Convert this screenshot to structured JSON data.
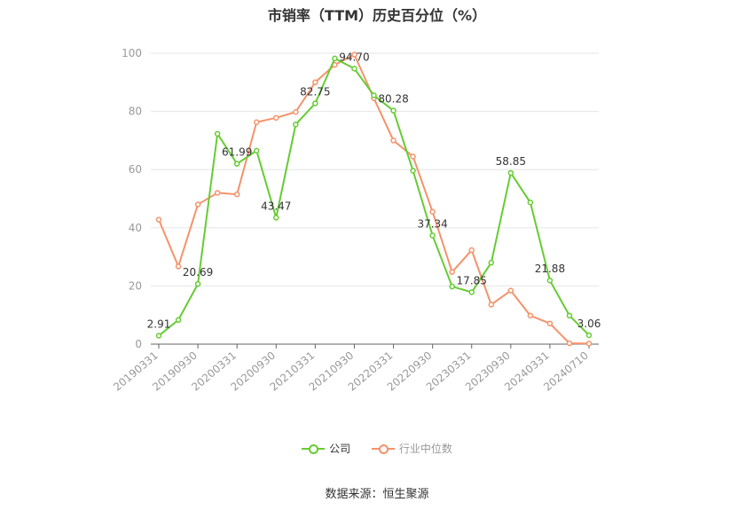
{
  "title": "市销率（TTM）历史百分位（%）",
  "source": "数据来源：恒生聚源",
  "legend": {
    "company": "公司",
    "industry": "行业中位数"
  },
  "colors": {
    "company": "#66cc33",
    "industry": "#f4936b",
    "axis": "#999999",
    "grid": "#e6e6e6"
  },
  "chart_data": {
    "type": "line",
    "title": "市销率（TTM）历史百分位（%）",
    "ylim": [
      0,
      100
    ],
    "yticks": [
      0,
      20,
      40,
      60,
      80,
      100
    ],
    "xtick_labels": [
      "20190331",
      "20190930",
      "20200331",
      "20200930",
      "20210331",
      "20210930",
      "20220331",
      "20220930",
      "20230331",
      "20230930",
      "20240331",
      "20240710"
    ],
    "x": [
      "20190331",
      "20190630",
      "20190930",
      "20191231",
      "20200331",
      "20200630",
      "20200930",
      "20201231",
      "20210331",
      "20210630",
      "20210930",
      "20211231",
      "20220331",
      "20220630",
      "20220930",
      "20221231",
      "20230331",
      "20230630",
      "20230930",
      "20231231",
      "20240331",
      "20240630",
      "20240710"
    ],
    "series": [
      {
        "name": "公司",
        "values": [
          2.91,
          8.3,
          20.69,
          72.3,
          61.99,
          66.5,
          43.47,
          75.5,
          82.75,
          98.2,
          94.7,
          85.5,
          80.28,
          59.6,
          37.34,
          19.8,
          17.85,
          28.0,
          58.85,
          48.7,
          21.88,
          9.8,
          3.06
        ],
        "labels": {
          "0": "2.91",
          "2": "20.69",
          "4": "61.99",
          "6": "43.47",
          "8": "82.75",
          "10": "94.70",
          "12": "80.28",
          "14": "37.34",
          "16": "17.85",
          "18": "58.85",
          "20": "21.88",
          "22": "3.06"
        }
      },
      {
        "name": "行业中位数",
        "values": [
          42.8,
          26.7,
          48.0,
          52.0,
          51.5,
          76.3,
          77.8,
          79.8,
          90.0,
          96.0,
          99.5,
          84.5,
          70.0,
          64.5,
          45.5,
          24.8,
          32.3,
          13.6,
          18.4,
          9.8,
          7.1,
          0.3,
          0.2
        ]
      }
    ]
  }
}
